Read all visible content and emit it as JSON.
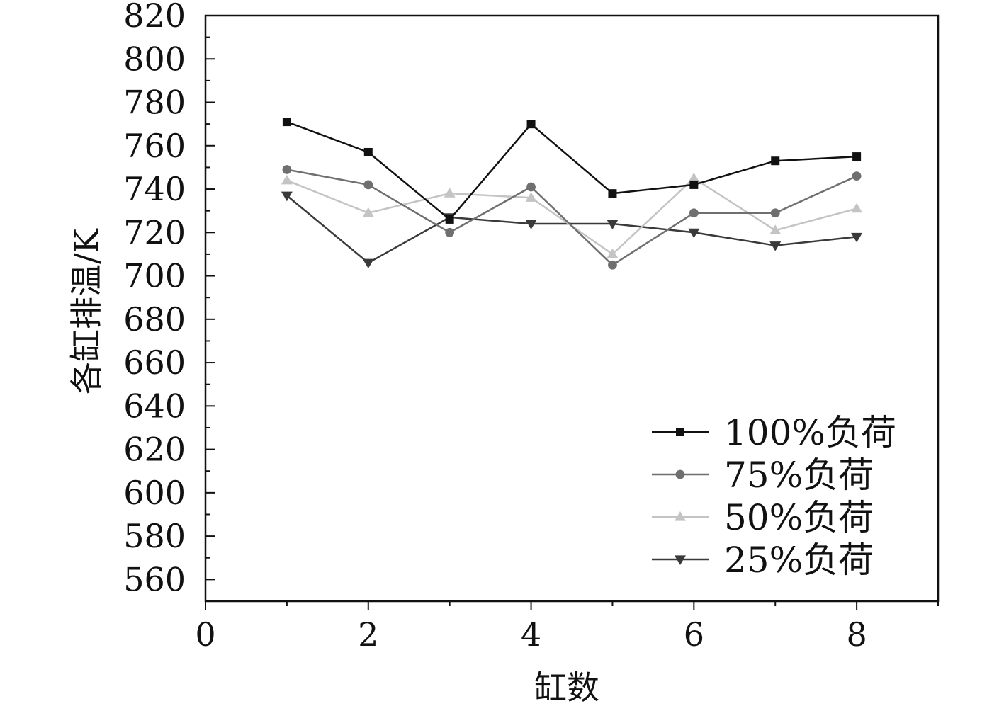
{
  "chart_data": {
    "type": "line",
    "xlabel": "缸数",
    "ylabel": "各缸排温/K",
    "xlim": [
      0,
      9
    ],
    "ylim": [
      550,
      820
    ],
    "xticks": [
      0,
      2,
      4,
      6,
      8
    ],
    "xtick_labels": [
      "0",
      "2",
      "4",
      "6",
      "8"
    ],
    "yticks": [
      560,
      580,
      600,
      620,
      640,
      660,
      680,
      700,
      720,
      740,
      760,
      780,
      800,
      820
    ],
    "ytick_labels": [
      "560",
      "580",
      "600",
      "620",
      "640",
      "660",
      "680",
      "700",
      "720",
      "740",
      "760",
      "780",
      "800",
      "820"
    ],
    "grid": false,
    "legend_position": "bottom-right",
    "x": [
      1,
      2,
      3,
      4,
      5,
      6,
      7,
      8
    ],
    "series": [
      {
        "name": "100%负荷",
        "marker": "square",
        "color": "#111111",
        "values": [
          771,
          757,
          726,
          770,
          738,
          742,
          753,
          755
        ]
      },
      {
        "name": "75%负荷",
        "marker": "circle",
        "color": "#6f6f6f",
        "values": [
          749,
          742,
          720,
          741,
          705,
          729,
          729,
          746
        ]
      },
      {
        "name": "50%负荷",
        "marker": "triangle-up",
        "color": "#c4c4c4",
        "values": [
          744,
          729,
          738,
          736,
          710,
          745,
          721,
          731
        ]
      },
      {
        "name": "25%负荷",
        "marker": "triangle-down",
        "color": "#3a3a3a",
        "values": [
          737,
          706,
          727,
          724,
          724,
          720,
          714,
          718
        ]
      }
    ]
  }
}
